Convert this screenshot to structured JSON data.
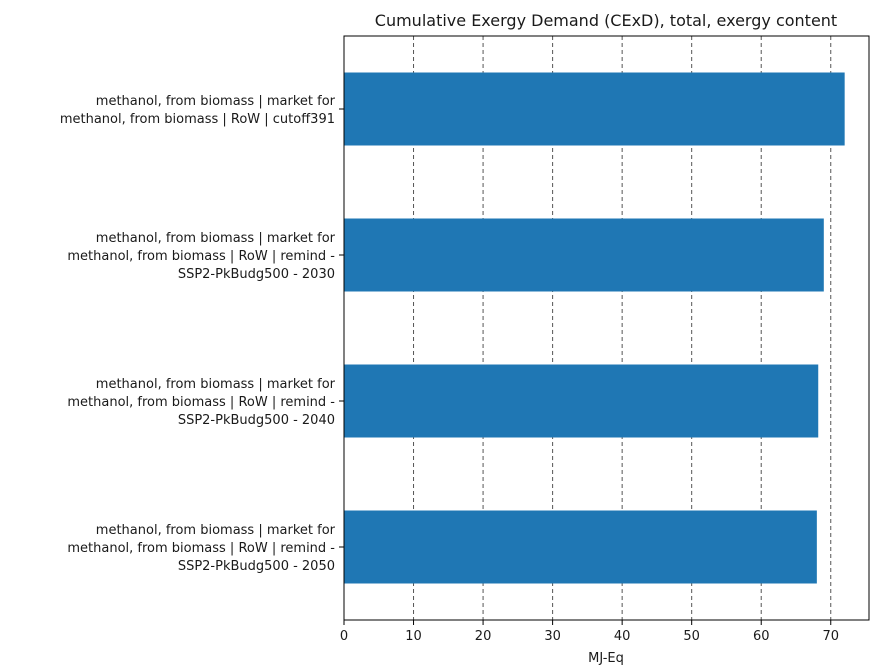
{
  "chart_data": {
    "type": "bar",
    "orientation": "horizontal",
    "title": "Cumulative Exergy Demand (CExD), total, exergy content",
    "xlabel": "MJ-Eq",
    "ylabel": "",
    "xlim": [
      0,
      75.5
    ],
    "x_ticks": [
      0,
      10,
      20,
      30,
      40,
      50,
      60,
      70
    ],
    "grid": "x-dashed",
    "bar_color": "#1f77b4",
    "categories": [
      [
        "methanol, from biomass | market for",
        "methanol, from biomass | RoW | cutoff391"
      ],
      [
        "methanol, from biomass | market for",
        "methanol, from biomass | RoW | remind -",
        "SSP2-PkBudg500 - 2030"
      ],
      [
        "methanol, from biomass | market for",
        "methanol, from biomass | RoW | remind -",
        "SSP2-PkBudg500 - 2040"
      ],
      [
        "methanol, from biomass | market for",
        "methanol, from biomass | RoW | remind -",
        "SSP2-PkBudg500 - 2050"
      ]
    ],
    "values": [
      72.0,
      69.0,
      68.2,
      68.0
    ]
  }
}
